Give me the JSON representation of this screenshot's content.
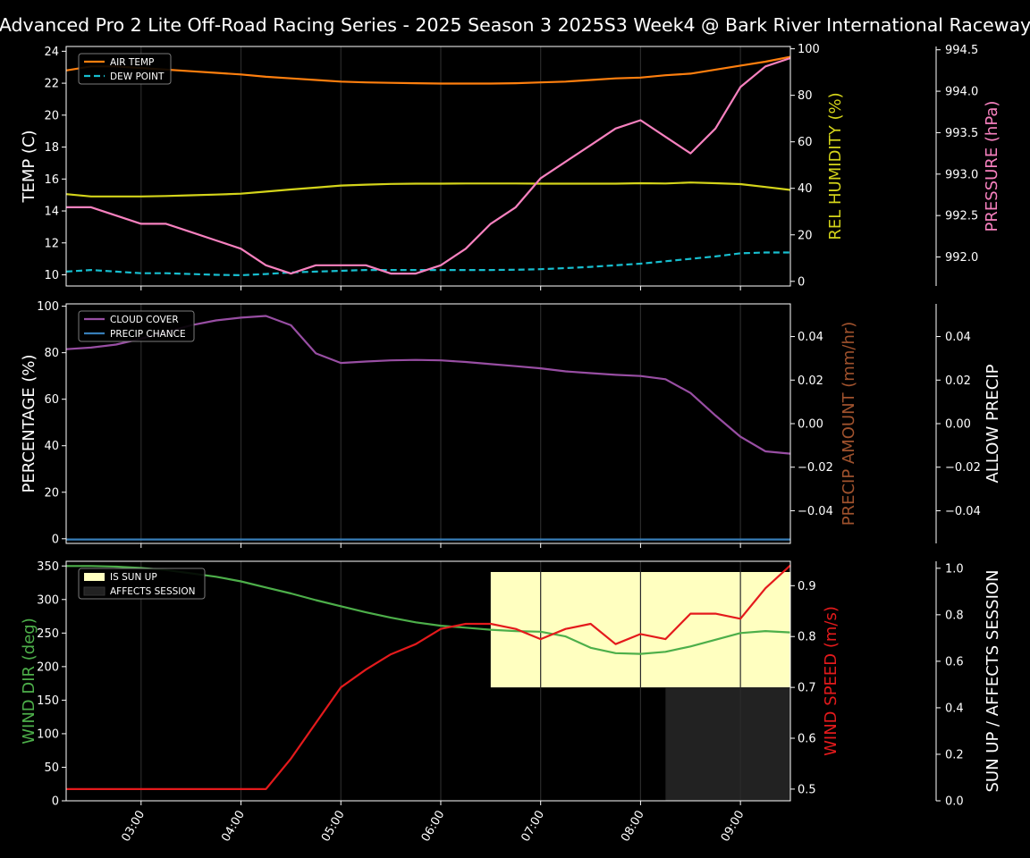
{
  "title": "Advanced Pro 2 Lite Off-Road Racing Series - 2025 Season 3 2025S3 Week4 @ Bark River International Raceway",
  "colors": {
    "air_temp": "#ff7f0e",
    "dew_point": "#17becf",
    "humidity": "#d4d41a",
    "pressure": "#f781bf",
    "cloud": "#984ea3",
    "precip": "#377eb8",
    "precip_amount_label": "#a0522d",
    "wind_dir": "#4daf4a",
    "wind_speed": "#e41a1c",
    "sun_up": "#ffffc0",
    "affects_session": "#222222"
  },
  "x_tick_labels": [
    "03:00",
    "04:00",
    "05:00",
    "06:00",
    "07:00",
    "08:00",
    "09:00"
  ],
  "chart_data": [
    {
      "type": "line",
      "name": "temperature-panel",
      "x": [
        2.25,
        2.5,
        2.75,
        3.0,
        3.25,
        3.5,
        3.75,
        4.0,
        4.25,
        4.5,
        4.75,
        5.0,
        5.25,
        5.5,
        5.75,
        6.0,
        6.25,
        6.5,
        6.75,
        7.0,
        7.25,
        7.5,
        7.75,
        8.0,
        8.25,
        8.5,
        8.75,
        9.0,
        9.25,
        9.5
      ],
      "xlim": [
        2.25,
        9.5
      ],
      "ylabel": "TEMP (C)",
      "ylim": [
        9.3,
        24.3
      ],
      "yticks": [
        10,
        12,
        14,
        16,
        18,
        20,
        22,
        24
      ],
      "legend": {
        "placement": "top-left",
        "entries": [
          "AIR TEMP",
          "DEW POINT"
        ]
      },
      "series": [
        {
          "name": "AIR TEMP",
          "axis": "left",
          "style": "solid",
          "values": [
            22.8,
            23.05,
            23.05,
            22.95,
            22.85,
            22.75,
            22.65,
            22.55,
            22.4,
            22.3,
            22.2,
            22.1,
            22.05,
            22.02,
            22.0,
            21.98,
            21.98,
            21.98,
            22.0,
            22.05,
            22.1,
            22.2,
            22.3,
            22.35,
            22.5,
            22.6,
            22.85,
            23.1,
            23.35,
            23.65
          ]
        },
        {
          "name": "DEW POINT",
          "axis": "left",
          "style": "dashed",
          "values": [
            10.2,
            10.3,
            10.2,
            10.1,
            10.1,
            10.05,
            10.0,
            9.98,
            10.05,
            10.15,
            10.2,
            10.25,
            10.3,
            10.3,
            10.3,
            10.3,
            10.3,
            10.3,
            10.32,
            10.35,
            10.42,
            10.5,
            10.6,
            10.7,
            10.85,
            11.0,
            11.15,
            11.35,
            11.4,
            11.4
          ]
        },
        {
          "name": "REL HUMIDITY (%)",
          "axis": "right1",
          "style": "solid",
          "values": [
            37.5,
            36.5,
            36.5,
            36.5,
            36.7,
            37.0,
            37.3,
            37.7,
            38.6,
            39.5,
            40.3,
            41.2,
            41.6,
            41.9,
            42.0,
            42.0,
            42.1,
            42.1,
            42.1,
            42.0,
            42.0,
            42.0,
            42.0,
            42.2,
            42.1,
            42.5,
            42.2,
            41.8,
            40.6,
            39.3
          ]
        },
        {
          "name": "PRESSURE (hPa)",
          "axis": "right2",
          "style": "solid",
          "values": [
            992.6,
            992.6,
            992.5,
            992.4,
            992.4,
            992.3,
            992.2,
            992.1,
            991.9,
            991.8,
            991.9,
            991.9,
            991.9,
            991.8,
            991.8,
            991.9,
            992.1,
            992.4,
            992.6,
            992.95,
            993.15,
            993.35,
            993.55,
            993.65,
            993.45,
            993.25,
            993.55,
            994.05,
            994.3,
            994.4
          ]
        }
      ],
      "y2": {
        "label": "REL HUMIDITY (%)",
        "ylim": [
          -2,
          101
        ],
        "ticks": [
          0,
          20,
          40,
          60,
          80,
          100
        ]
      },
      "y3": {
        "label": "PRESSURE (hPa)",
        "ylim": [
          991.65,
          994.54
        ],
        "ticks": [
          992.0,
          992.5,
          993.0,
          993.5,
          994.0,
          994.5
        ],
        "tick_labels": [
          "992.0",
          "992.5",
          "993.0",
          "993.5",
          "994.0",
          "994.5"
        ]
      }
    },
    {
      "type": "line",
      "name": "cloud-precip-panel",
      "x": [
        2.25,
        2.5,
        2.75,
        3.0,
        3.25,
        3.5,
        3.75,
        4.0,
        4.25,
        4.5,
        4.75,
        5.0,
        5.25,
        5.5,
        5.75,
        6.0,
        6.25,
        6.5,
        6.75,
        7.0,
        7.25,
        7.5,
        7.75,
        8.0,
        8.25,
        8.5,
        8.75,
        9.0,
        9.25,
        9.5
      ],
      "xlim": [
        2.25,
        9.5
      ],
      "ylabel": "PERCENTAGE (%)",
      "ylim": [
        -2,
        101
      ],
      "yticks": [
        0,
        20,
        40,
        60,
        80,
        100
      ],
      "legend": {
        "placement": "top-left",
        "entries": [
          "CLOUD COVER",
          "PRECIP CHANCE"
        ]
      },
      "series": [
        {
          "name": "CLOUD COVER",
          "axis": "left",
          "values": [
            81.5,
            82.2,
            83.5,
            86.0,
            88.8,
            91.8,
            93.9,
            95.1,
            95.8,
            91.8,
            79.7,
            75.6,
            76.2,
            76.7,
            76.9,
            76.7,
            76.0,
            75.1,
            74.2,
            73.3,
            72.0,
            71.2,
            70.5,
            70.0,
            68.6,
            62.7,
            53.0,
            43.9,
            37.6,
            36.6
          ]
        },
        {
          "name": "PRECIP CHANCE",
          "axis": "left",
          "values": [
            -0.3,
            -0.3,
            -0.3,
            -0.3,
            -0.3,
            -0.3,
            -0.3,
            -0.3,
            -0.3,
            -0.3,
            -0.3,
            -0.3,
            -0.3,
            -0.3,
            -0.3,
            -0.3,
            -0.3,
            -0.3,
            -0.3,
            -0.3,
            -0.3,
            -0.3,
            -0.3,
            -0.3,
            -0.3,
            -0.3,
            -0.3,
            -0.3,
            -0.3,
            -0.3
          ]
        }
      ],
      "y2": {
        "label": "PRECIP AMOUNT (mm/hr)",
        "ylim": [
          -0.055,
          0.055
        ],
        "ticks": [
          -0.04,
          -0.02,
          0.0,
          0.02,
          0.04
        ],
        "tick_labels": [
          "−0.04",
          "−0.02",
          "0.00",
          "0.02",
          "0.04"
        ]
      },
      "y3": {
        "label": "ALLOW PRECIP",
        "ylim": [
          -0.055,
          0.055
        ],
        "ticks": [
          -0.04,
          -0.02,
          0.0,
          0.02,
          0.04
        ],
        "tick_labels": [
          "−0.04",
          "−0.02",
          "0.00",
          "0.02",
          "0.04"
        ]
      }
    },
    {
      "type": "line",
      "name": "wind-panel",
      "x": [
        2.25,
        2.5,
        2.75,
        3.0,
        3.25,
        3.5,
        3.75,
        4.0,
        4.25,
        4.5,
        4.75,
        5.0,
        5.25,
        5.5,
        5.75,
        6.0,
        6.25,
        6.5,
        6.75,
        7.0,
        7.25,
        7.5,
        7.75,
        8.0,
        8.25,
        8.5,
        8.75,
        9.0,
        9.25,
        9.5
      ],
      "xlim": [
        2.25,
        9.5
      ],
      "ylabel": "WIND DIR (deg)",
      "ylim": [
        0,
        357
      ],
      "yticks": [
        0,
        50,
        100,
        150,
        200,
        250,
        300,
        350
      ],
      "legend": {
        "placement": "top-left",
        "entries": [
          "IS SUN UP",
          "AFFECTS SESSION"
        ]
      },
      "sun_up": {
        "x_start": 6.5,
        "x_end": 9.5,
        "level": 0.7
      },
      "affects_session": {
        "x_start": 8.25,
        "x_end": 9.5,
        "level": 0.7
      },
      "series": [
        {
          "name": "WIND DIR (deg)",
          "axis": "left",
          "values": [
            350,
            350,
            349,
            347,
            344,
            339,
            334,
            327,
            318,
            309,
            299,
            290,
            281,
            273,
            266,
            261,
            258,
            255,
            253,
            252,
            245,
            228,
            220,
            219,
            222,
            230,
            240,
            250,
            253,
            251
          ]
        },
        {
          "name": "WIND SPEED (m/s)",
          "axis": "right1",
          "values": [
            0.5,
            0.5,
            0.5,
            0.5,
            0.5,
            0.5,
            0.5,
            0.5,
            0.5,
            0.56,
            0.63,
            0.7,
            0.735,
            0.765,
            0.785,
            0.815,
            0.825,
            0.825,
            0.815,
            0.795,
            0.815,
            0.825,
            0.785,
            0.805,
            0.795,
            0.845,
            0.845,
            0.835,
            0.895,
            0.94
          ]
        }
      ],
      "y2": {
        "label": "WIND SPEED (m/s)",
        "ylim": [
          0.477,
          0.948
        ],
        "ticks": [
          0.5,
          0.6,
          0.7,
          0.8,
          0.9
        ],
        "tick_labels": [
          "0.5",
          "0.6",
          "0.7",
          "0.8",
          "0.9"
        ]
      },
      "y3": {
        "label": "SUN UP / AFFECTS SESSION",
        "ylim": [
          0,
          1.03
        ],
        "ticks": [
          0.0,
          0.2,
          0.4,
          0.6,
          0.8,
          1.0
        ],
        "tick_labels": [
          "0.0",
          "0.2",
          "0.4",
          "0.6",
          "0.8",
          "1.0"
        ]
      }
    }
  ]
}
